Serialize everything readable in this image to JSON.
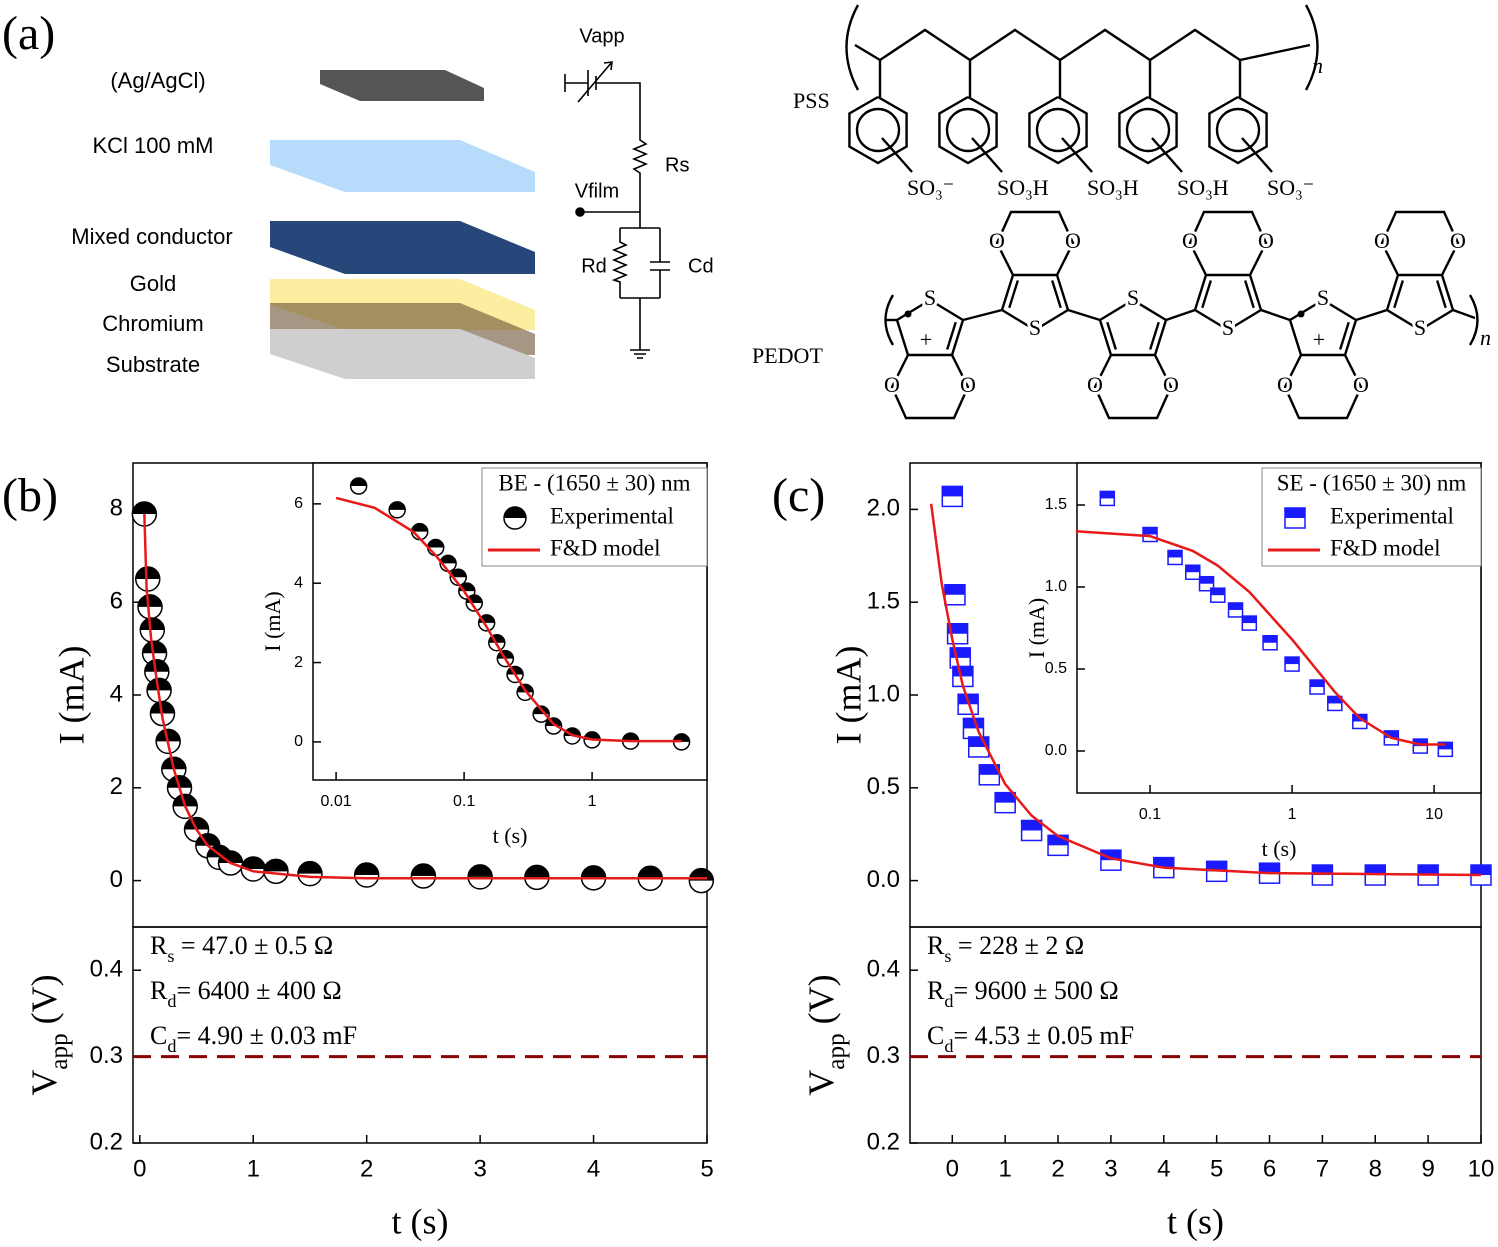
{
  "panel_a": {
    "label": "(a)",
    "layers": [
      "(Ag/AgCl)",
      "KCl 100 mM",
      "Mixed conductor",
      "Gold",
      "Chromium",
      "Substrate"
    ],
    "circuit": {
      "vapp": "Vapp",
      "rs": "Rs",
      "vfilm": "Vfilm",
      "rd": "Rd",
      "cd": "Cd"
    },
    "pss": {
      "label": "PSS",
      "groups": [
        "SO₃⁻",
        "SO₃H",
        "SO₃H",
        "SO₃H",
        "SO₃⁻"
      ],
      "n": "n"
    },
    "pedot": {
      "label": "PEDOT",
      "sulfur": "S",
      "oxygen": "O",
      "charge": "+",
      "n": "n"
    }
  },
  "chart_data": [
    {
      "type": "scatter",
      "panel_label": "(b)",
      "ylabel": "I (mA)",
      "xlim": [
        -0.06,
        5
      ],
      "ylim": [
        -1,
        9
      ],
      "yticks": [
        0,
        2,
        4,
        6,
        8
      ],
      "series": [
        {
          "marker": "half-circle",
          "color": "#000000",
          "x": [
            0.04,
            0.07,
            0.09,
            0.11,
            0.13,
            0.15,
            0.17,
            0.2,
            0.25,
            0.3,
            0.35,
            0.4,
            0.5,
            0.6,
            0.7,
            0.8,
            1.0,
            1.2,
            1.5,
            2,
            2.5,
            3,
            3.5,
            4,
            4.5,
            4.95
          ],
          "values": [
            7.9,
            6.5,
            5.9,
            5.4,
            4.9,
            4.5,
            4.1,
            3.6,
            3.0,
            2.4,
            2.0,
            1.6,
            1.1,
            0.75,
            0.5,
            0.38,
            0.25,
            0.2,
            0.15,
            0.12,
            0.1,
            0.08,
            0.07,
            0.06,
            0.05,
            0.0
          ]
        },
        {
          "color": "#e8191b",
          "x": [
            0.04,
            0.06,
            0.1,
            0.15,
            0.2,
            0.3,
            0.4,
            0.5,
            0.6,
            0.8,
            1.0,
            1.5,
            2,
            3,
            4,
            5
          ],
          "values": [
            7.9,
            6.3,
            5.2,
            4.3,
            3.5,
            2.4,
            1.6,
            1.1,
            0.75,
            0.38,
            0.2,
            0.08,
            0.05,
            0.05,
            0.05,
            0.05
          ]
        }
      ]
    },
    {
      "type": "line",
      "xlabel": "t (s)",
      "ylabel": {
        "main": "V",
        "sub": "app",
        "rest": " (V)"
      },
      "xlim": [
        -0.06,
        5
      ],
      "xticks": [
        0,
        1,
        2,
        3,
        4,
        5
      ],
      "ylim": [
        0.2,
        0.45
      ],
      "yticks": [
        0.2,
        0.3,
        0.4
      ],
      "hlines": [
        {
          "value": 0.3,
          "color": "#8b0000"
        }
      ],
      "annotations": [
        {
          "main": "R",
          "sub": "s",
          "rest": " = 47.0 ± 0.5 Ω"
        },
        {
          "main": "R",
          "sub": "d",
          "rest": "= 6400 ± 400 Ω"
        },
        {
          "main": "C",
          "sub": "d",
          "rest": "= 4.90 ±  0.03 mF"
        }
      ]
    },
    {
      "type": "scatter",
      "xscale": "log",
      "xlabel": "t (s)",
      "ylabel": "I (mA)",
      "xlim": [
        0.0066,
        7.9
      ],
      "xticks": [
        0.01,
        0.1,
        1
      ],
      "ylim": [
        -0.96,
        7.03
      ],
      "yticks": [
        0,
        2,
        4,
        6
      ],
      "legend_title": "BE - (1650 ± 30) nm",
      "series": [
        {
          "name": "Experimental",
          "marker": "half-circle",
          "color": "#000000",
          "x": [
            0.015,
            0.03,
            0.045,
            0.06,
            0.075,
            0.09,
            0.105,
            0.12,
            0.15,
            0.18,
            0.21,
            0.25,
            0.3,
            0.4,
            0.5,
            0.7,
            1,
            2,
            5
          ],
          "values": [
            6.45,
            5.85,
            5.3,
            4.9,
            4.5,
            4.15,
            3.8,
            3.5,
            3.0,
            2.5,
            2.1,
            1.7,
            1.25,
            0.7,
            0.4,
            0.15,
            0.05,
            0.02,
            0.0
          ]
        },
        {
          "name": "F&D model",
          "color": "#e8191b",
          "x": [
            0.01,
            0.02,
            0.04,
            0.06,
            0.1,
            0.15,
            0.2,
            0.3,
            0.5,
            0.7,
            1,
            2,
            5
          ],
          "values": [
            6.15,
            5.9,
            5.3,
            4.7,
            3.8,
            2.9,
            2.2,
            1.3,
            0.45,
            0.17,
            0.06,
            0.02,
            0.02
          ]
        }
      ]
    },
    {
      "type": "scatter",
      "panel_label": "(c)",
      "ylabel": "I (mA)",
      "xlim": [
        -0.8,
        10
      ],
      "ylim": [
        -0.25,
        2.25
      ],
      "yticks": [
        {
          "value": 0,
          "label": "0.0"
        },
        0.5,
        {
          "value": 1,
          "label": "1.0"
        },
        1.5,
        {
          "value": 2,
          "label": "2.0"
        }
      ],
      "series": [
        {
          "marker": "half-square",
          "color": "#1a1aff",
          "x": [
            0,
            0.05,
            0.1,
            0.15,
            0.2,
            0.3,
            0.4,
            0.5,
            0.7,
            1,
            1.5,
            2,
            3,
            4,
            5,
            6,
            7,
            8,
            9,
            10
          ],
          "values": [
            2.07,
            1.54,
            1.33,
            1.2,
            1.1,
            0.95,
            0.82,
            0.72,
            0.57,
            0.42,
            0.27,
            0.19,
            0.11,
            0.07,
            0.05,
            0.04,
            0.03,
            0.03,
            0.03,
            0.03
          ]
        },
        {
          "color": "#e8191b",
          "x": [
            -0.4,
            -0.2,
            0,
            0.2,
            0.5,
            1,
            1.5,
            2,
            3,
            4,
            6,
            10
          ],
          "values": [
            2.03,
            1.6,
            1.3,
            1.05,
            0.8,
            0.52,
            0.35,
            0.24,
            0.12,
            0.07,
            0.04,
            0.03
          ]
        }
      ]
    },
    {
      "type": "line",
      "xlabel": "t (s)",
      "ylabel": {
        "main": "V",
        "sub": "app",
        "rest": " (V)"
      },
      "xlim": [
        -0.8,
        10
      ],
      "xticks": [
        0,
        1,
        2,
        3,
        4,
        5,
        6,
        7,
        8,
        9,
        10
      ],
      "ylim": [
        0.2,
        0.45
      ],
      "yticks": [
        0.2,
        0.3,
        0.4
      ],
      "hlines": [
        {
          "value": 0.3,
          "color": "#8b0000"
        }
      ],
      "annotations": [
        {
          "main": "R",
          "sub": "s",
          "rest": " = 228 ± 2 Ω"
        },
        {
          "main": "R",
          "sub": "d",
          "rest": "= 9600 ± 500 Ω"
        },
        {
          "main": "C",
          "sub": "d",
          "rest": "= 4.53 ±  0.05 mF"
        }
      ]
    },
    {
      "type": "scatter",
      "xscale": "log",
      "xlabel": "t (s)",
      "ylabel": "I (mA)",
      "xlim": [
        0.0306,
        21.4
      ],
      "xticks": [
        0.1,
        1,
        10
      ],
      "ylim": [
        -0.256,
        1.756
      ],
      "yticks": [
        {
          "value": 0,
          "label": "0.0"
        },
        0.5,
        {
          "value": 1,
          "label": "1.0"
        },
        1.5
      ],
      "legend_title": "SE - (1650 ± 30) nm",
      "series": [
        {
          "name": "Experimental",
          "marker": "half-square",
          "color": "#1a1aff",
          "x": [
            0.05,
            0.1,
            0.15,
            0.2,
            0.25,
            0.3,
            0.4,
            0.5,
            0.7,
            1,
            1.5,
            2,
            3,
            5,
            8,
            12
          ],
          "values": [
            1.54,
            1.32,
            1.18,
            1.09,
            1.02,
            0.95,
            0.86,
            0.78,
            0.66,
            0.53,
            0.39,
            0.29,
            0.18,
            0.08,
            0.03,
            0.01
          ]
        },
        {
          "name": "F&D model",
          "color": "#e8191b",
          "x": [
            0.03,
            0.1,
            0.2,
            0.3,
            0.5,
            1,
            2,
            3,
            5,
            8,
            12
          ],
          "values": [
            1.34,
            1.31,
            1.22,
            1.13,
            0.97,
            0.68,
            0.36,
            0.2,
            0.08,
            0.04,
            0.04
          ]
        }
      ]
    }
  ]
}
